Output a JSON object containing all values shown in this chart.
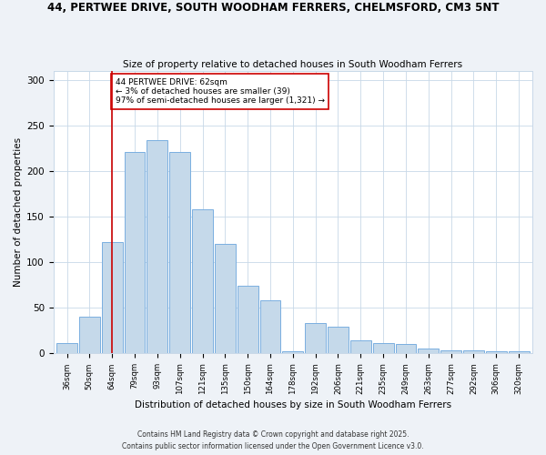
{
  "title1": "44, PERTWEE DRIVE, SOUTH WOODHAM FERRERS, CHELMSFORD, CM3 5NT",
  "title2": "Size of property relative to detached houses in South Woodham Ferrers",
  "xlabel": "Distribution of detached houses by size in South Woodham Ferrers",
  "ylabel": "Number of detached properties",
  "bar_labels": [
    "36sqm",
    "50sqm",
    "64sqm",
    "79sqm",
    "93sqm",
    "107sqm",
    "121sqm",
    "135sqm",
    "150sqm",
    "164sqm",
    "178sqm",
    "192sqm",
    "206sqm",
    "221sqm",
    "235sqm",
    "249sqm",
    "263sqm",
    "277sqm",
    "292sqm",
    "306sqm",
    "320sqm"
  ],
  "bar_values": [
    11,
    40,
    122,
    221,
    234,
    221,
    158,
    120,
    74,
    58,
    2,
    33,
    29,
    14,
    11,
    10,
    5,
    3,
    3,
    2,
    2
  ],
  "bar_color": "#c5d9ea",
  "bar_edge_color": "#7aafe0",
  "vline_x": 2,
  "vline_color": "#cc0000",
  "annotation_text": "44 PERTWEE DRIVE: 62sqm\n← 3% of detached houses are smaller (39)\n97% of semi-detached houses are larger (1,321) →",
  "annotation_box_color": "#ffffff",
  "annotation_box_edge": "#cc0000",
  "ylim": [
    0,
    310
  ],
  "yticks": [
    0,
    50,
    100,
    150,
    200,
    250,
    300
  ],
  "footer1": "Contains HM Land Registry data © Crown copyright and database right 2025.",
  "footer2": "Contains public sector information licensed under the Open Government Licence v3.0.",
  "bg_color": "#eef2f7",
  "plot_bg_color": "#ffffff",
  "grid_color": "#c8d8e8"
}
